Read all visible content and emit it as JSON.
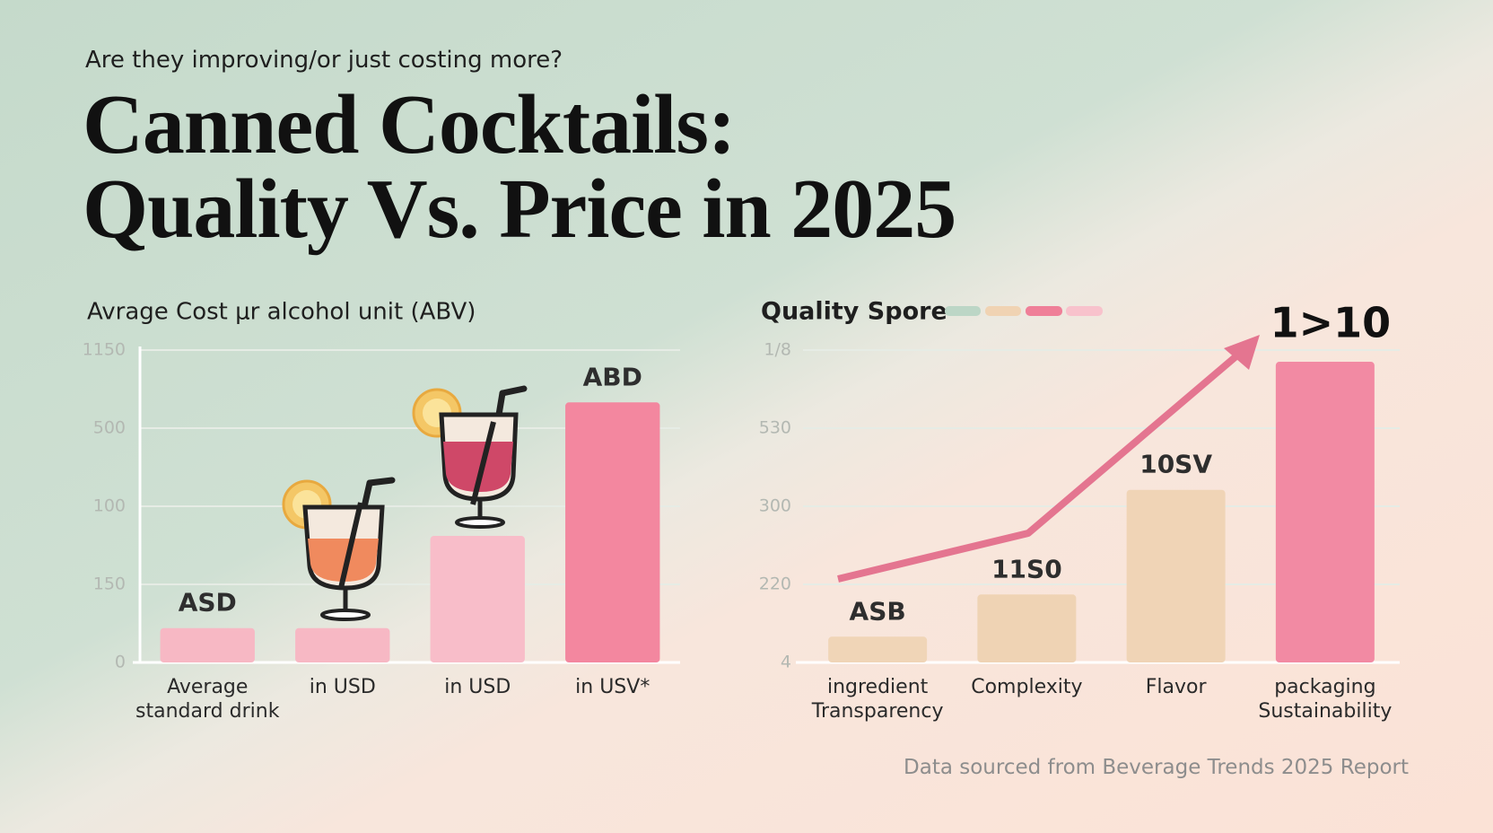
{
  "subtitle": "Are they improving/or just costing more?",
  "title": "Canned Cocktails:\nQuality Vs. Price in 2025",
  "chart_data": [
    {
      "type": "bar",
      "title": "Avrage Cost μr alcohol unit (ABV)",
      "categories": [
        "Average\nstandard drink",
        "in USD",
        "in USD",
        "in USV*"
      ],
      "values": [
        0.44,
        0.44,
        1.62,
        3.33
      ],
      "bar_labels": [
        "ASD",
        null,
        null,
        "ABD"
      ],
      "colors": [
        "#f7b8c4",
        "#f7b8c4",
        "#f8bdc9",
        "#f3879f"
      ],
      "ylim": [
        0,
        4
      ],
      "yticks": [
        0,
        {
          "value": 1,
          "label": "150"
        },
        {
          "value": 2,
          "label": "100"
        },
        {
          "value": 3,
          "label": "500"
        },
        {
          "value": 4,
          "label": "1150"
        }
      ],
      "grid": true,
      "y_axis_line": true
    },
    {
      "type": "bar",
      "title": "Quality Spore",
      "categories": [
        "ingredient\nTransparency",
        "Complexity",
        "Flavor",
        "packaging\nSustainability"
      ],
      "values": [
        0.33,
        0.87,
        2.21,
        3.85
      ],
      "bar_labels": [
        "ASB",
        "11S0",
        "10SV",
        "1>10"
      ],
      "colors": [
        "#f0d5b7",
        "#efd3b4",
        "#f0d4b6",
        "#f28aa3"
      ],
      "ylim": [
        0,
        4
      ],
      "yticks": [
        {
          "value": 0,
          "label": "4"
        },
        {
          "value": 1,
          "label": "220"
        },
        {
          "value": 2,
          "label": "300"
        },
        {
          "value": 3,
          "label": "530"
        },
        {
          "value": 4,
          "label": "1/8"
        }
      ],
      "grid": true,
      "y_axis_line": false
    }
  ],
  "footer": "Data sourced from Beverage Trends 2025 Report"
}
